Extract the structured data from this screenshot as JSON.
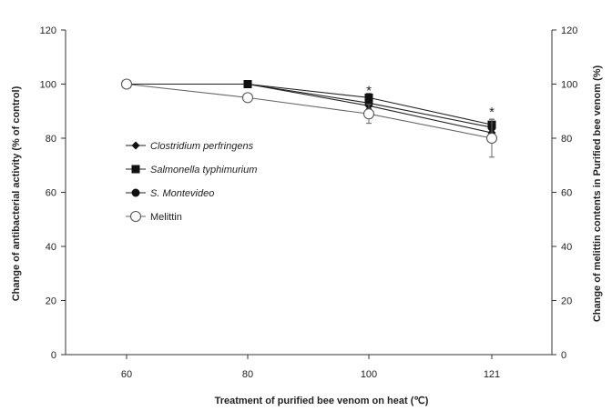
{
  "chart_data": {
    "type": "line",
    "x": [
      60,
      80,
      100,
      121
    ],
    "xlabel": "Treatment of purified bee venom on heat (℃)",
    "ylabel_left": "Change of antibacterial activity (% of control)",
    "ylabel_right": "Change of melittin contents in Purified bee venom (%)",
    "ylim": [
      0,
      120
    ],
    "yticks": [
      0,
      20,
      40,
      60,
      80,
      100,
      120
    ],
    "x_ticks": [
      "60",
      "80",
      "100",
      "121"
    ],
    "grid": false,
    "legend_position": "center-left",
    "series": [
      {
        "name": "Clostridium perfringens",
        "italic": true,
        "marker": "diamond-filled",
        "values": [
          100,
          100,
          92,
          82
        ],
        "errors": [
          0,
          0,
          1,
          1.5
        ]
      },
      {
        "name": "Salmonella typhimurium",
        "italic": true,
        "marker": "square-filled",
        "values": [
          100,
          100,
          95,
          85
        ],
        "errors": [
          0,
          0,
          1.5,
          2
        ]
      },
      {
        "name": "S. Montevideo",
        "italic": true,
        "marker": "circle-filled",
        "values": [
          100,
          100,
          93,
          84
        ],
        "errors": [
          0,
          0,
          1,
          1.5
        ]
      },
      {
        "name": "Melittin",
        "italic": false,
        "marker": "circle-open",
        "values": [
          100,
          95,
          89,
          80
        ],
        "errors": [
          0,
          1.5,
          3.5,
          7
        ]
      }
    ],
    "annotations": [
      {
        "text": "*",
        "x": 100,
        "y": 96
      },
      {
        "text": "*",
        "x": 121,
        "y": 88
      }
    ]
  }
}
